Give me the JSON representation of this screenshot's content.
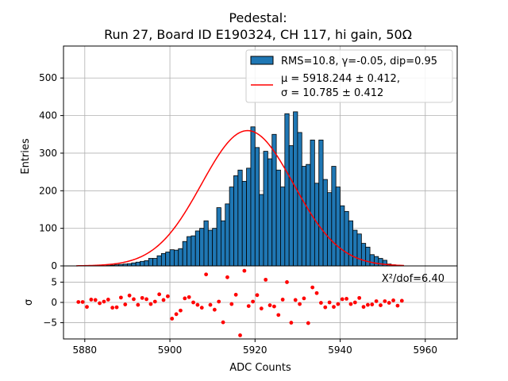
{
  "chart_data": [
    {
      "type": "bar",
      "subtype": "histogram",
      "title": "Pedestal:",
      "subtitle": "Run 27, Board ID E190324, CH 117, hi gain, 50Ω",
      "ylabel": "Entries",
      "xlim": [
        5875,
        5967.5
      ],
      "ylim": [
        0,
        585
      ],
      "yticks": [
        0,
        100,
        200,
        300,
        400,
        500
      ],
      "grid": true,
      "legend_position": "top-right",
      "bin_width": 1,
      "bin_start": 5878,
      "bar_color": "#1f77b4",
      "bar_edge": "#000000",
      "fit_color": "#ff0000",
      "fit": {
        "type": "gaussian",
        "mu": 5918.244,
        "sigma": 10.785,
        "amplitude": 360,
        "x_range": [
          5878,
          5955
        ]
      },
      "series": [
        {
          "name": "RMS=10.8, γ=-0.05, dip=0.95",
          "values": [
            0,
            0,
            0,
            0,
            0,
            0,
            0,
            1,
            2,
            3,
            4,
            5,
            6,
            8,
            10,
            12,
            14,
            20,
            20,
            27,
            33,
            37,
            43,
            42,
            46,
            65,
            78,
            80,
            93,
            100,
            120,
            95,
            100,
            155,
            120,
            165,
            210,
            240,
            255,
            225,
            260,
            370,
            315,
            190,
            305,
            285,
            350,
            255,
            210,
            405,
            320,
            410,
            355,
            265,
            270,
            335,
            220,
            335,
            230,
            195,
            265,
            210,
            160,
            145,
            120,
            95,
            85,
            60,
            50,
            30,
            25,
            20,
            15,
            5,
            3,
            2,
            0
          ]
        },
        {
          "name": "legend_fit_line"
        }
      ],
      "legend": {
        "entry1": "RMS=10.8, γ=-0.05, dip=0.95",
        "entry2_line1": "μ = 5918.244 ± 0.412,",
        "entry2_line2": "σ = 10.785 ± 0.412"
      }
    },
    {
      "type": "scatter",
      "xlabel": "ADC Counts",
      "ylabel": "σ",
      "xlim": [
        5875,
        5967.5
      ],
      "ylim": [
        -9,
        9
      ],
      "yticks": [
        -5,
        0,
        5
      ],
      "xticks": [
        5880,
        5900,
        5920,
        5940,
        5960
      ],
      "grid": true,
      "annotation": "X²/dof=6.40",
      "point_color": "#ff0000",
      "x": [
        5878,
        5879,
        5880,
        5881,
        5882,
        5883,
        5884,
        5885,
        5886,
        5887,
        5888,
        5889,
        5890,
        5891,
        5892,
        5893,
        5894,
        5895,
        5896,
        5897,
        5898,
        5899,
        5900,
        5901,
        5902,
        5903,
        5904,
        5905,
        5906,
        5907,
        5908,
        5909,
        5910,
        5911,
        5912,
        5913,
        5914,
        5915,
        5916,
        5917,
        5918,
        5919,
        5920,
        5921,
        5922,
        5923,
        5924,
        5925,
        5926,
        5927,
        5928,
        5929,
        5930,
        5931,
        5932,
        5933,
        5934,
        5935,
        5936,
        5937,
        5938,
        5939,
        5940,
        5941,
        5942,
        5943,
        5944,
        5945,
        5946,
        5947,
        5948,
        5949,
        5950,
        5951,
        5952,
        5953,
        5954
      ],
      "y": [
        0.1,
        0.1,
        -1.1,
        0.7,
        0.6,
        -0.2,
        0.2,
        0.7,
        -1.3,
        -1.2,
        1.2,
        -0.5,
        1.7,
        0.8,
        -0.6,
        1.1,
        0.8,
        -0.4,
        0.2,
        2.0,
        0.6,
        1.5,
        -4.0,
        -2.9,
        -2.0,
        1.0,
        1.3,
        0.0,
        -0.6,
        -1.3,
        6.9,
        -0.6,
        -1.8,
        0.2,
        -4.9,
        6.2,
        -0.4,
        1.9,
        -8.1,
        7.8,
        -0.9,
        0.2,
        1.8,
        -1.5,
        5.6,
        -0.7,
        -1.0,
        -3.1,
        0.7,
        5.0,
        -5.0,
        0.6,
        -0.4,
        1.0,
        -5.1,
        3.7,
        2.3,
        -0.1,
        -1.2,
        0.0,
        -1.1,
        -0.4,
        0.8,
        0.9,
        -0.4,
        0.0,
        1.1,
        -1.1,
        -0.6,
        -0.5,
        0.3,
        -0.7,
        0.3,
        -0.1,
        0.5,
        -0.8,
        0.4
      ]
    }
  ]
}
